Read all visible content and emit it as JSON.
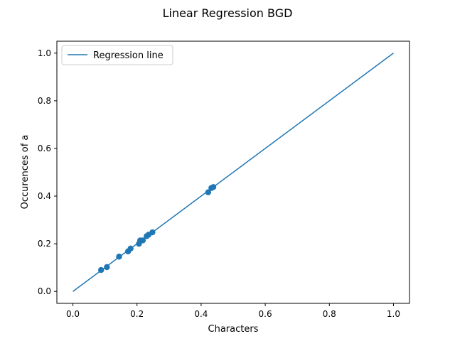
{
  "chart_data": {
    "type": "scatter",
    "title": "Linear Regression BGD",
    "xlabel": "Characters",
    "ylabel": "Occurences of a",
    "xlim": [
      -0.05,
      1.05
    ],
    "ylim": [
      -0.05,
      1.05
    ],
    "xticks": [
      0.0,
      0.2,
      0.4,
      0.6,
      0.8,
      1.0
    ],
    "yticks": [
      0.0,
      0.2,
      0.4,
      0.6,
      0.8,
      1.0
    ],
    "xtick_labels": [
      "0.0",
      "0.2",
      "0.4",
      "0.6",
      "0.8",
      "1.0"
    ],
    "ytick_labels": [
      "0.0",
      "0.2",
      "0.4",
      "0.6",
      "0.8",
      "1.0"
    ],
    "grid": false,
    "legend": {
      "position": "top-left",
      "entries": [
        "Regression line"
      ]
    },
    "series": [
      {
        "name": "Regression line",
        "kind": "line",
        "color": "#1f77b4",
        "x": [
          0.0,
          1.0
        ],
        "y": [
          0.0,
          1.0
        ]
      },
      {
        "kind": "scatter",
        "color": "#1f77b4",
        "x": [
          0.088,
          0.106,
          0.144,
          0.172,
          0.18,
          0.206,
          0.21,
          0.218,
          0.23,
          0.236,
          0.248,
          0.422,
          0.432,
          0.438
        ],
        "y": [
          0.09,
          0.102,
          0.146,
          0.168,
          0.18,
          0.2,
          0.214,
          0.214,
          0.232,
          0.238,
          0.248,
          0.416,
          0.434,
          0.438
        ]
      }
    ]
  }
}
